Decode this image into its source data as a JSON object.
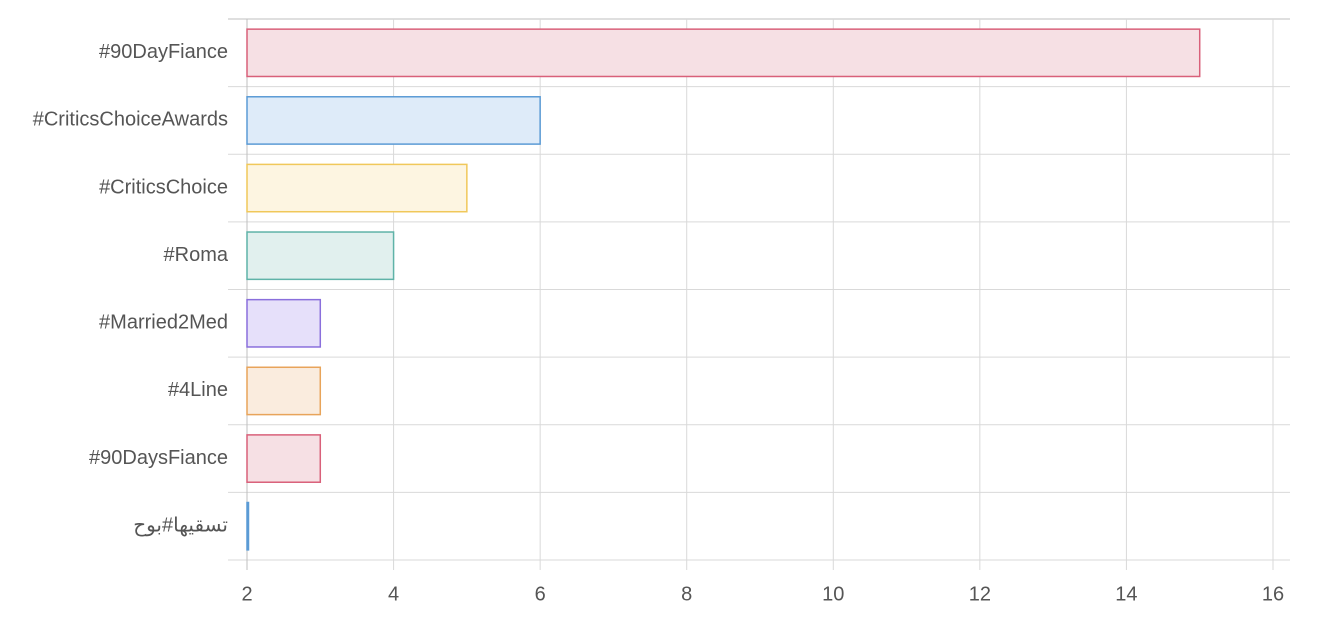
{
  "chart_data": {
    "type": "bar",
    "orientation": "horizontal",
    "categories": [
      "#90DayFiance",
      "#CriticsChoiceAwards",
      "#CriticsChoice",
      "#Roma",
      "#Married2Med",
      "#4Line",
      "#90DaysFiance",
      "تسقيها#بوح"
    ],
    "values": [
      15,
      6,
      5,
      4,
      3,
      3,
      3,
      2
    ],
    "xlim": [
      2,
      16
    ],
    "xticks": [
      2,
      4,
      6,
      8,
      10,
      12,
      14,
      16
    ],
    "grid": true,
    "legend": "none",
    "colors": [
      {
        "stroke": "#d9607a",
        "fill": "#f6e0e4"
      },
      {
        "stroke": "#5b9bd5",
        "fill": "#deebf9"
      },
      {
        "stroke": "#f0c85a",
        "fill": "#fdf5e1"
      },
      {
        "stroke": "#5fb3a8",
        "fill": "#e1f0ee"
      },
      {
        "stroke": "#8a6fdc",
        "fill": "#e6e0fa"
      },
      {
        "stroke": "#e8a45a",
        "fill": "#faecde"
      },
      {
        "stroke": "#d9607a",
        "fill": "#f6e0e4"
      },
      {
        "stroke": "#5b9bd5",
        "fill": "#deebf9"
      }
    ]
  }
}
